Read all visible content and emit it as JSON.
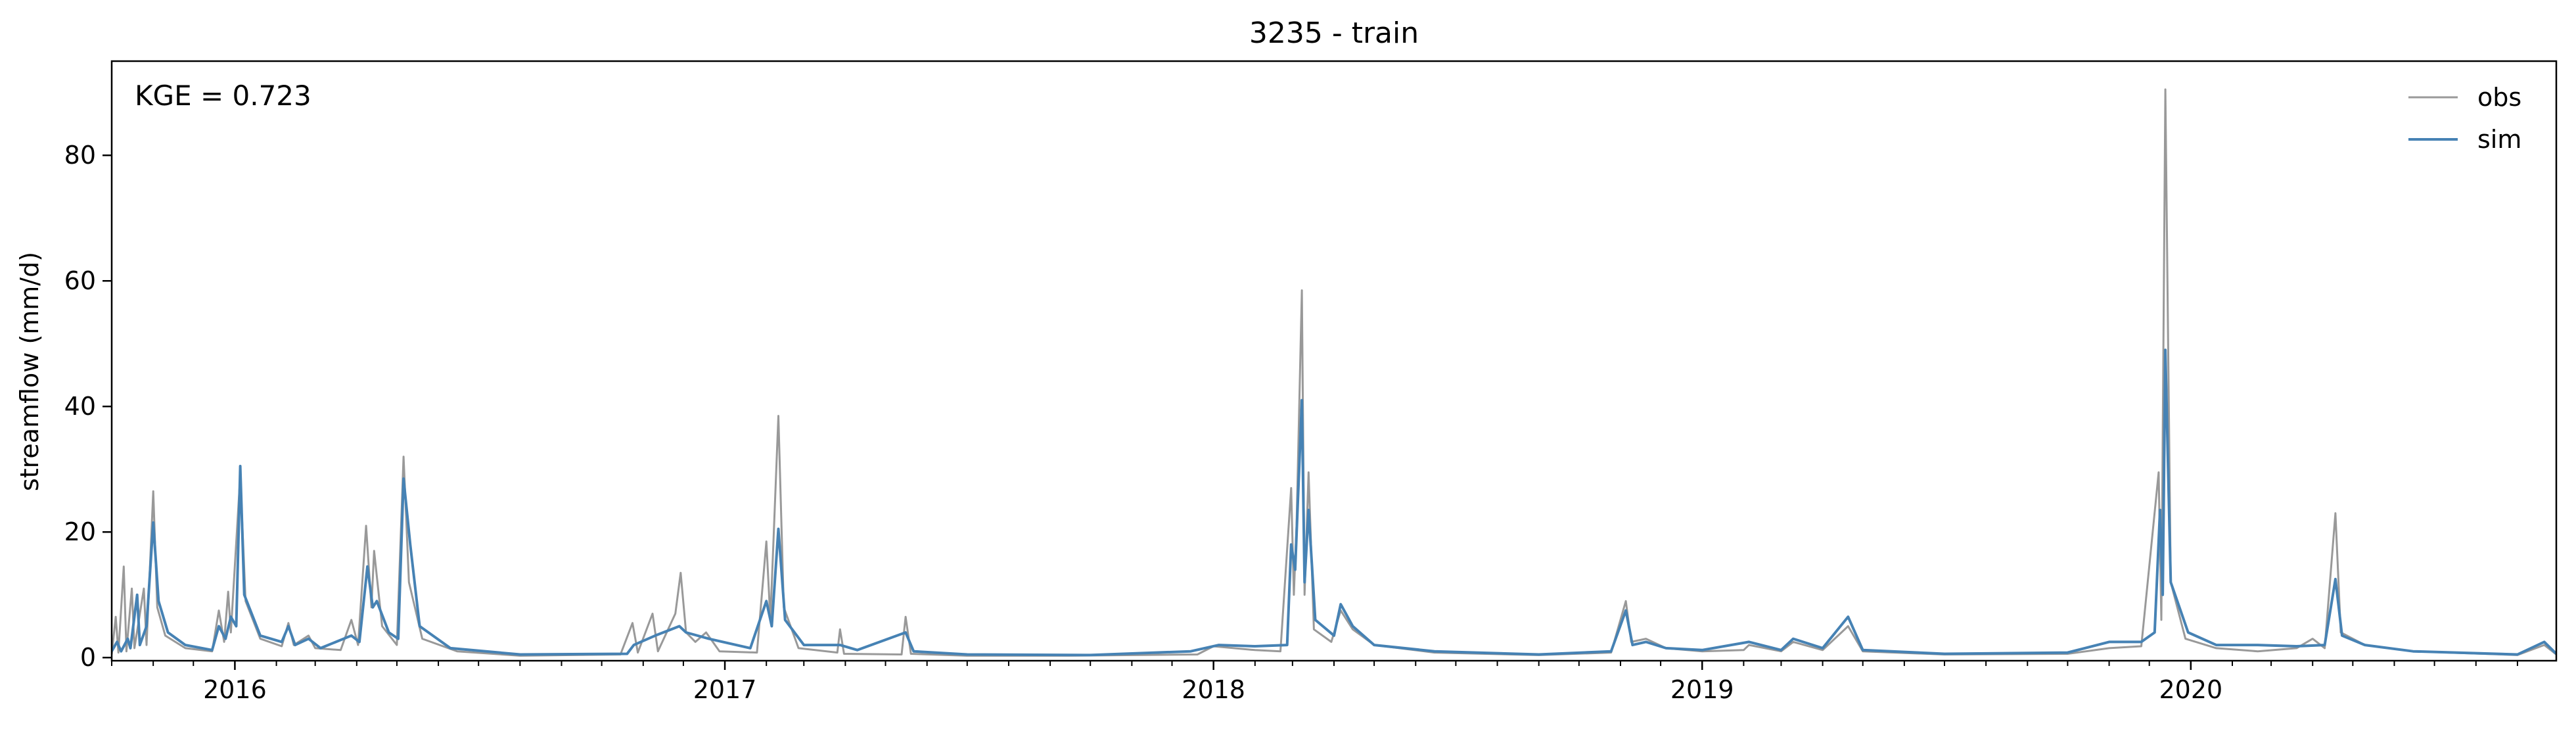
{
  "chart_data": {
    "type": "line",
    "title": "3235 - train",
    "xlabel": "",
    "ylabel": "streamflow (mm/d)",
    "annotation": "KGE = 0.723",
    "x_range": [
      "2015-10-01",
      "2020-09-30"
    ],
    "ylim": [
      -0.5,
      95
    ],
    "x_ticks": [
      {
        "date": "2016-01-01",
        "label": "2016"
      },
      {
        "date": "2017-01-01",
        "label": "2017"
      },
      {
        "date": "2018-01-01",
        "label": "2018"
      },
      {
        "date": "2019-01-01",
        "label": "2019"
      },
      {
        "date": "2020-01-01",
        "label": "2020"
      }
    ],
    "y_ticks": [
      {
        "value": 0,
        "label": "0"
      },
      {
        "value": 20,
        "label": "20"
      },
      {
        "value": 40,
        "label": "40"
      },
      {
        "value": 60,
        "label": "60"
      },
      {
        "value": 80,
        "label": "80"
      }
    ],
    "grid": false,
    "legend_position": "top-right",
    "series": [
      {
        "name": "obs",
        "color": "#999999",
        "points": [
          [
            "2015-10-01",
            0.5
          ],
          [
            "2015-10-04",
            6.5
          ],
          [
            "2015-10-06",
            0.8
          ],
          [
            "2015-10-10",
            14.5
          ],
          [
            "2015-10-12",
            1.0
          ],
          [
            "2015-10-16",
            11.0
          ],
          [
            "2015-10-18",
            1.5
          ],
          [
            "2015-10-25",
            11.0
          ],
          [
            "2015-10-27",
            2.0
          ],
          [
            "2015-11-01",
            26.5
          ],
          [
            "2015-11-04",
            8.0
          ],
          [
            "2015-11-10",
            3.5
          ],
          [
            "2015-11-25",
            1.5
          ],
          [
            "2015-12-15",
            1.0
          ],
          [
            "2015-12-20",
            7.5
          ],
          [
            "2015-12-24",
            2.5
          ],
          [
            "2015-12-27",
            10.5
          ],
          [
            "2015-12-29",
            4.0
          ],
          [
            "2016-01-05",
            29.0
          ],
          [
            "2016-01-09",
            9.0
          ],
          [
            "2016-01-20",
            3.0
          ],
          [
            "2016-02-05",
            1.8
          ],
          [
            "2016-02-10",
            5.5
          ],
          [
            "2016-02-14",
            2.0
          ],
          [
            "2016-02-25",
            3.5
          ],
          [
            "2016-03-01",
            1.5
          ],
          [
            "2016-03-20",
            1.2
          ],
          [
            "2016-03-28",
            6.0
          ],
          [
            "2016-04-02",
            2.0
          ],
          [
            "2016-04-08",
            21.0
          ],
          [
            "2016-04-12",
            8.0
          ],
          [
            "2016-04-14",
            17.0
          ],
          [
            "2016-04-20",
            5.0
          ],
          [
            "2016-05-01",
            2.0
          ],
          [
            "2016-05-06",
            32.0
          ],
          [
            "2016-05-10",
            12.0
          ],
          [
            "2016-05-20",
            3.0
          ],
          [
            "2016-06-15",
            1.0
          ],
          [
            "2016-08-01",
            0.3
          ],
          [
            "2016-10-15",
            0.5
          ],
          [
            "2016-10-24",
            5.5
          ],
          [
            "2016-10-28",
            0.8
          ],
          [
            "2016-11-08",
            7.0
          ],
          [
            "2016-11-12",
            1.0
          ],
          [
            "2016-11-25",
            7.0
          ],
          [
            "2016-11-29",
            13.5
          ],
          [
            "2016-12-03",
            4.0
          ],
          [
            "2016-12-10",
            2.5
          ],
          [
            "2016-12-18",
            4.0
          ],
          [
            "2016-12-28",
            1.0
          ],
          [
            "2017-01-25",
            0.8
          ],
          [
            "2017-02-01",
            18.5
          ],
          [
            "2017-02-04",
            6.0
          ],
          [
            "2017-02-10",
            38.5
          ],
          [
            "2017-02-14",
            8.0
          ],
          [
            "2017-02-25",
            1.5
          ],
          [
            "2017-03-26",
            0.8
          ],
          [
            "2017-03-28",
            4.5
          ],
          [
            "2017-03-31",
            0.6
          ],
          [
            "2017-05-13",
            0.5
          ],
          [
            "2017-05-16",
            6.5
          ],
          [
            "2017-05-20",
            0.6
          ],
          [
            "2017-07-01",
            0.3
          ],
          [
            "2017-09-15",
            0.3
          ],
          [
            "2017-12-20",
            0.5
          ],
          [
            "2018-01-01",
            1.8
          ],
          [
            "2018-02-01",
            1.2
          ],
          [
            "2018-02-20",
            1.0
          ],
          [
            "2018-02-28",
            27.0
          ],
          [
            "2018-03-02",
            10.0
          ],
          [
            "2018-03-04",
            21.0
          ],
          [
            "2018-03-08",
            58.5
          ],
          [
            "2018-03-10",
            10.0
          ],
          [
            "2018-03-13",
            29.5
          ],
          [
            "2018-03-17",
            4.5
          ],
          [
            "2018-03-30",
            2.5
          ],
          [
            "2018-04-06",
            7.5
          ],
          [
            "2018-04-15",
            4.5
          ],
          [
            "2018-05-01",
            2.0
          ],
          [
            "2018-06-15",
            0.8
          ],
          [
            "2018-09-01",
            0.4
          ],
          [
            "2018-10-25",
            0.8
          ],
          [
            "2018-11-05",
            9.0
          ],
          [
            "2018-11-09",
            2.5
          ],
          [
            "2018-11-20",
            3.0
          ],
          [
            "2018-12-05",
            1.5
          ],
          [
            "2019-01-01",
            1.0
          ],
          [
            "2019-02-01",
            1.2
          ],
          [
            "2019-02-05",
            2.0
          ],
          [
            "2019-03-01",
            1.0
          ],
          [
            "2019-03-10",
            2.5
          ],
          [
            "2019-04-01",
            1.2
          ],
          [
            "2019-04-20",
            5.0
          ],
          [
            "2019-05-01",
            1.0
          ],
          [
            "2019-07-01",
            0.5
          ],
          [
            "2019-10-01",
            0.6
          ],
          [
            "2019-11-01",
            1.5
          ],
          [
            "2019-11-25",
            1.8
          ],
          [
            "2019-12-08",
            29.5
          ],
          [
            "2019-12-10",
            6.0
          ],
          [
            "2019-12-13",
            90.5
          ],
          [
            "2019-12-17",
            12.0
          ],
          [
            "2019-12-28",
            3.0
          ],
          [
            "2020-01-20",
            1.5
          ],
          [
            "2020-02-20",
            1.0
          ],
          [
            "2020-03-20",
            1.5
          ],
          [
            "2020-04-01",
            3.0
          ],
          [
            "2020-04-10",
            1.5
          ],
          [
            "2020-04-18",
            23.0
          ],
          [
            "2020-04-22",
            4.0
          ],
          [
            "2020-05-10",
            2.0
          ],
          [
            "2020-06-15",
            1.0
          ],
          [
            "2020-09-01",
            0.4
          ],
          [
            "2020-09-21",
            2.0
          ],
          [
            "2020-09-30",
            0.5
          ]
        ]
      },
      {
        "name": "sim",
        "color": "#4682b4",
        "points": [
          [
            "2015-10-01",
            1.0
          ],
          [
            "2015-10-05",
            2.5
          ],
          [
            "2015-10-08",
            1.0
          ],
          [
            "2015-10-13",
            3.0
          ],
          [
            "2015-10-15",
            1.5
          ],
          [
            "2015-10-20",
            10.0
          ],
          [
            "2015-10-22",
            2.0
          ],
          [
            "2015-10-27",
            5.0
          ],
          [
            "2015-11-01",
            21.5
          ],
          [
            "2015-11-05",
            9.0
          ],
          [
            "2015-11-12",
            4.0
          ],
          [
            "2015-11-25",
            2.0
          ],
          [
            "2015-12-15",
            1.2
          ],
          [
            "2015-12-20",
            5.0
          ],
          [
            "2015-12-25",
            3.0
          ],
          [
            "2015-12-29",
            6.5
          ],
          [
            "2016-01-02",
            5.0
          ],
          [
            "2016-01-05",
            30.5
          ],
          [
            "2016-01-08",
            10.0
          ],
          [
            "2016-01-20",
            3.5
          ],
          [
            "2016-02-05",
            2.5
          ],
          [
            "2016-02-10",
            5.0
          ],
          [
            "2016-02-15",
            2.0
          ],
          [
            "2016-02-25",
            3.0
          ],
          [
            "2016-03-05",
            1.5
          ],
          [
            "2016-03-28",
            3.5
          ],
          [
            "2016-04-03",
            2.5
          ],
          [
            "2016-04-09",
            14.5
          ],
          [
            "2016-04-13",
            8.0
          ],
          [
            "2016-04-16",
            9.0
          ],
          [
            "2016-04-25",
            4.0
          ],
          [
            "2016-05-02",
            3.0
          ],
          [
            "2016-05-06",
            28.5
          ],
          [
            "2016-05-11",
            18.0
          ],
          [
            "2016-05-18",
            5.0
          ],
          [
            "2016-06-10",
            1.5
          ],
          [
            "2016-08-01",
            0.5
          ],
          [
            "2016-10-20",
            0.6
          ],
          [
            "2016-10-25",
            2.0
          ],
          [
            "2016-11-10",
            3.5
          ],
          [
            "2016-11-28",
            5.0
          ],
          [
            "2016-12-03",
            4.0
          ],
          [
            "2016-12-20",
            3.0
          ],
          [
            "2017-01-20",
            1.5
          ],
          [
            "2017-02-01",
            9.0
          ],
          [
            "2017-02-05",
            5.0
          ],
          [
            "2017-02-10",
            20.5
          ],
          [
            "2017-02-15",
            6.0
          ],
          [
            "2017-03-01",
            2.0
          ],
          [
            "2017-03-28",
            2.0
          ],
          [
            "2017-04-10",
            1.2
          ],
          [
            "2017-05-16",
            4.0
          ],
          [
            "2017-05-22",
            1.0
          ],
          [
            "2017-07-01",
            0.5
          ],
          [
            "2017-10-01",
            0.4
          ],
          [
            "2017-12-15",
            1.0
          ],
          [
            "2018-01-05",
            2.0
          ],
          [
            "2018-02-01",
            1.8
          ],
          [
            "2018-02-25",
            2.0
          ],
          [
            "2018-02-28",
            18.0
          ],
          [
            "2018-03-03",
            14.0
          ],
          [
            "2018-03-08",
            41.0
          ],
          [
            "2018-03-10",
            12.0
          ],
          [
            "2018-03-13",
            23.5
          ],
          [
            "2018-03-18",
            6.0
          ],
          [
            "2018-04-01",
            3.5
          ],
          [
            "2018-04-06",
            8.5
          ],
          [
            "2018-04-15",
            5.0
          ],
          [
            "2018-05-01",
            2.0
          ],
          [
            "2018-06-15",
            1.0
          ],
          [
            "2018-09-01",
            0.5
          ],
          [
            "2018-10-25",
            1.0
          ],
          [
            "2018-11-05",
            7.5
          ],
          [
            "2018-11-10",
            2.0
          ],
          [
            "2018-11-20",
            2.5
          ],
          [
            "2018-12-05",
            1.5
          ],
          [
            "2019-01-01",
            1.2
          ],
          [
            "2019-02-05",
            2.5
          ],
          [
            "2019-03-01",
            1.2
          ],
          [
            "2019-03-10",
            3.0
          ],
          [
            "2019-04-01",
            1.5
          ],
          [
            "2019-04-20",
            6.5
          ],
          [
            "2019-05-01",
            1.2
          ],
          [
            "2019-07-01",
            0.6
          ],
          [
            "2019-10-01",
            0.8
          ],
          [
            "2019-11-01",
            2.5
          ],
          [
            "2019-11-25",
            2.5
          ],
          [
            "2019-12-05",
            4.0
          ],
          [
            "2019-12-09",
            23.5
          ],
          [
            "2019-12-11",
            10.0
          ],
          [
            "2019-12-13",
            49.0
          ],
          [
            "2019-12-17",
            12.0
          ],
          [
            "2019-12-30",
            4.0
          ],
          [
            "2020-01-20",
            2.0
          ],
          [
            "2020-02-20",
            2.0
          ],
          [
            "2020-03-20",
            1.8
          ],
          [
            "2020-04-10",
            2.0
          ],
          [
            "2020-04-18",
            12.5
          ],
          [
            "2020-04-23",
            3.5
          ],
          [
            "2020-05-10",
            2.0
          ],
          [
            "2020-06-15",
            1.0
          ],
          [
            "2020-09-01",
            0.5
          ],
          [
            "2020-09-21",
            2.5
          ],
          [
            "2020-09-30",
            0.6
          ]
        ]
      }
    ]
  }
}
